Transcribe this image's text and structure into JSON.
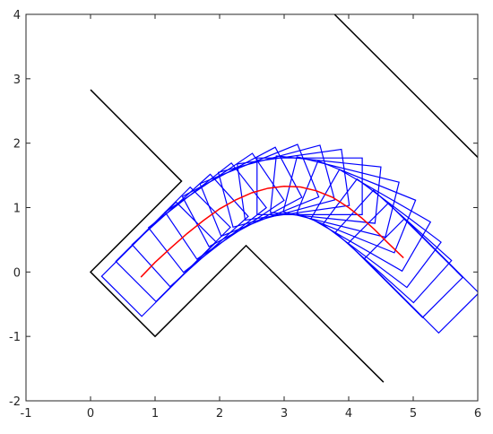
{
  "chart_data": {
    "type": "line",
    "xlim": [
      -1,
      6
    ],
    "ylim": [
      -2,
      4
    ],
    "xticks": [
      -1,
      0,
      1,
      2,
      3,
      4,
      5,
      6
    ],
    "yticks": [
      -2,
      -1,
      0,
      1,
      2,
      3,
      4
    ],
    "grid": false,
    "series": [
      {
        "color": "#000000",
        "x": [
          0,
          1.41,
          0,
          1,
          2.41,
          4.54
        ],
        "values": [
          2.83,
          1.41,
          0,
          -1,
          0.41,
          -1.71
        ]
      },
      {
        "color": "#000000",
        "x": [
          3.78,
          6
        ],
        "values": [
          4,
          1.78
        ]
      },
      {
        "color": "#ff0000",
        "x": [
          0.78,
          1.0,
          1.25,
          1.5,
          1.75,
          2.0,
          2.25,
          2.5,
          2.75,
          3.0,
          3.25,
          3.5,
          3.75,
          4.0,
          4.2,
          4.4,
          4.6,
          4.85
        ],
        "values": [
          -0.08,
          0.15,
          0.38,
          0.6,
          0.8,
          0.98,
          1.12,
          1.23,
          1.3,
          1.33,
          1.32,
          1.26,
          1.16,
          1.0,
          0.84,
          0.66,
          0.46,
          0.22
        ]
      }
    ],
    "boxes": {
      "color": "#0000ff",
      "length": 1.63,
      "rear": 0.42,
      "width": 0.88,
      "x": [
        0.78,
        1.0,
        1.25,
        1.5,
        1.75,
        2.0,
        2.25,
        2.5,
        2.75,
        3.0,
        3.25,
        3.5,
        3.75,
        4.0,
        4.2,
        4.4,
        4.6,
        4.85
      ],
      "y": [
        -0.08,
        0.15,
        0.38,
        0.6,
        0.8,
        0.98,
        1.12,
        1.23,
        1.3,
        1.33,
        1.32,
        1.26,
        1.16,
        1.0,
        0.84,
        0.66,
        0.46,
        0.22
      ],
      "heading": [
        45,
        45,
        42,
        38,
        34,
        28,
        22,
        15,
        8,
        0,
        -6,
        -14,
        -22,
        -30,
        -37,
        -42,
        -45,
        -45
      ]
    }
  }
}
